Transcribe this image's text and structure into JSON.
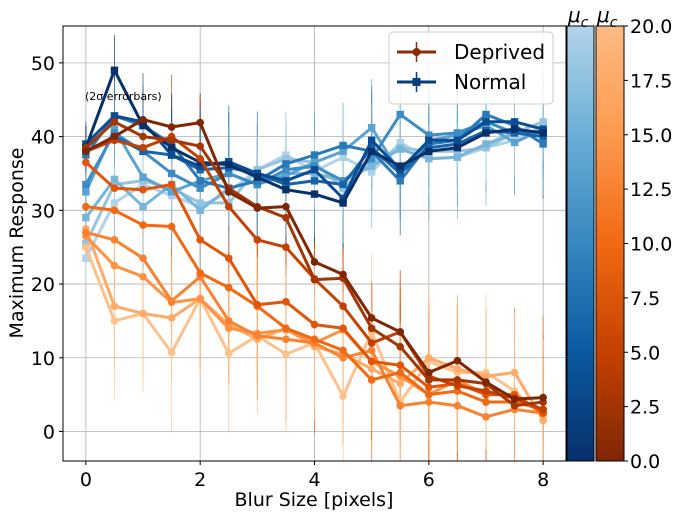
{
  "chart_data": {
    "type": "line",
    "xlabel": "Blur Size [pixels]",
    "ylabel": "Maximum Response",
    "xlim": [
      -0.4,
      8.4
    ],
    "ylim": [
      -4,
      55
    ],
    "x_ticks": [
      0,
      2,
      4,
      6,
      8
    ],
    "y_ticks": [
      0,
      10,
      20,
      30,
      40,
      50
    ],
    "grid": true,
    "legend_placement": "top-right",
    "annotation": "(2σ errorbars)",
    "legend": [
      {
        "label": "Deprived",
        "color": "#8a2b04",
        "marker": "circle"
      },
      {
        "label": "Normal",
        "color": "#083d7b",
        "marker": "square"
      }
    ],
    "x": [
      0,
      0.5,
      1,
      1.5,
      2,
      2.5,
      3,
      3.5,
      4,
      4.5,
      5,
      5.5,
      6,
      6.5,
      7,
      7.5,
      8
    ],
    "series": [
      {
        "group": "Deprived",
        "mu_c": 0.5,
        "color": "#7f2704",
        "values": [
          38,
          40,
          42.3,
          41.3,
          41.9,
          32.5,
          30.3,
          30.5,
          23,
          21.3,
          15.4,
          13.5,
          8,
          9.6,
          6.7,
          4.4,
          4.6
        ]
      },
      {
        "group": "Deprived",
        "mu_c": 2,
        "color": "#a33603",
        "values": [
          38.5,
          42,
          40,
          39.5,
          38.7,
          33,
          30.5,
          29,
          20.6,
          20.8,
          14,
          11.5,
          7,
          7,
          6.5,
          3.5,
          4
        ]
      },
      {
        "group": "Deprived",
        "mu_c": 4,
        "color": "#c44103",
        "values": [
          38,
          39.5,
          38.5,
          40,
          37,
          30.5,
          26,
          25,
          20.7,
          17,
          12,
          13.5,
          7.5,
          6.2,
          5.5,
          4.5,
          3
        ]
      },
      {
        "group": "Deprived",
        "mu_c": 6,
        "color": "#e25508",
        "values": [
          36.5,
          33,
          32.8,
          33.5,
          26,
          23.5,
          17.2,
          17.6,
          14.5,
          14,
          9.5,
          9,
          6,
          6.5,
          5,
          5,
          2.5
        ]
      },
      {
        "group": "Deprived",
        "mu_c": 8,
        "color": "#f16913",
        "values": [
          30.5,
          30,
          28,
          27.8,
          21.5,
          19.5,
          17,
          14,
          12.5,
          11,
          7,
          8,
          5,
          5.5,
          4,
          4,
          3
        ]
      },
      {
        "group": "Deprived",
        "mu_c": 10,
        "color": "#f98230",
        "values": [
          27,
          26,
          23.5,
          17.7,
          21,
          15,
          13,
          12.5,
          12,
          10,
          11,
          3.5,
          4,
          3.5,
          2,
          3,
          2.5
        ]
      },
      {
        "group": "Deprived",
        "mu_c": 12,
        "color": "#fd9243",
        "values": [
          26.5,
          22.5,
          21,
          17.5,
          18,
          14,
          13.3,
          13.8,
          12,
          13.8,
          9.5,
          7.5,
          5,
          7,
          5,
          5,
          2.5
        ]
      },
      {
        "group": "Deprived",
        "mu_c": 15,
        "color": "#fdab67",
        "values": [
          27.5,
          17,
          16,
          15.4,
          18,
          14.5,
          12.5,
          14,
          11.5,
          10.5,
          8.5,
          6.5,
          10,
          8.5,
          7.5,
          8,
          1.5
        ]
      },
      {
        "group": "Deprived",
        "mu_c": 18,
        "color": "#fdc28c",
        "values": [
          25,
          15,
          16,
          10.7,
          18,
          10.6,
          13,
          10.5,
          12,
          4.8,
          13.5,
          4,
          9.5,
          8,
          8,
          5.5,
          2
        ]
      },
      {
        "group": "Normal",
        "mu_c": 0.5,
        "color": "#08306b",
        "values": [
          38.5,
          49,
          41.5,
          38.5,
          36.5,
          36.2,
          34.5,
          32.8,
          32.2,
          31,
          38,
          36,
          38,
          38.5,
          40.5,
          41,
          40.5
        ]
      },
      {
        "group": "Normal",
        "mu_c": 2,
        "color": "#0b4d94",
        "values": [
          39,
          42.8,
          42,
          37.5,
          36,
          36.6,
          35,
          34,
          35.5,
          31.6,
          39.5,
          35.5,
          39.5,
          39.5,
          42,
          42,
          41
        ]
      },
      {
        "group": "Normal",
        "mu_c": 4,
        "color": "#1764ab",
        "values": [
          38,
          40,
          38,
          37.5,
          35.5,
          35.8,
          35,
          33.5,
          34,
          33.5,
          38.5,
          35,
          38.5,
          39,
          40.8,
          40.5,
          40
        ]
      },
      {
        "group": "Normal",
        "mu_c": 6,
        "color": "#2a7ab9",
        "values": [
          37.5,
          42.8,
          41.5,
          39,
          34,
          33,
          34,
          36.3,
          37.5,
          38.8,
          38,
          34,
          39,
          39.5,
          43,
          41.5,
          39
        ]
      },
      {
        "group": "Normal",
        "mu_c": 8,
        "color": "#3d8dc4",
        "values": [
          33.5,
          40.5,
          38,
          35,
          33,
          35,
          33.5,
          35.5,
          36,
          34,
          37,
          43,
          40.2,
          40.5,
          42,
          40.5,
          40.7
        ]
      },
      {
        "group": "Normal",
        "mu_c": 10,
        "color": "#5aa2cf",
        "values": [
          32.5,
          41,
          34.5,
          32.5,
          34,
          35,
          33.5,
          34.7,
          36.5,
          38,
          41.2,
          35,
          39.5,
          40.2,
          41.5,
          39.2,
          41
        ]
      },
      {
        "group": "Normal",
        "mu_c": 12,
        "color": "#77b5d9",
        "values": [
          29,
          34.2,
          30.5,
          33.5,
          30,
          33,
          34,
          35,
          35,
          34,
          36,
          38.3,
          37,
          37.2,
          39,
          40.5,
          40.5
        ]
      },
      {
        "group": "Normal",
        "mu_c": 15,
        "color": "#94c4df",
        "values": [
          25.5,
          33.5,
          34,
          33,
          31,
          31,
          35.5,
          37,
          36.5,
          33,
          36.5,
          38.5,
          38,
          38,
          38.5,
          40.5,
          42
        ]
      },
      {
        "group": "Normal",
        "mu_c": 18,
        "color": "#b0d2e8",
        "values": [
          23.5,
          31,
          33.5,
          32,
          30.5,
          32.5,
          35.5,
          37.5,
          35.3,
          37.2,
          35.2,
          39.2,
          37,
          37.2,
          38.5,
          39.5,
          41.5
        ]
      }
    ],
    "colorbars": [
      {
        "label": "μ_c",
        "cmap": "Blues_r",
        "range": [
          0,
          20
        ]
      },
      {
        "label": "μ_c",
        "cmap": "Oranges_r",
        "range": [
          0,
          20
        ],
        "ticks": [
          "0.0",
          "2.5",
          "5.0",
          "7.5",
          "10.0",
          "12.5",
          "15.0",
          "17.5",
          "20.0"
        ]
      }
    ]
  }
}
